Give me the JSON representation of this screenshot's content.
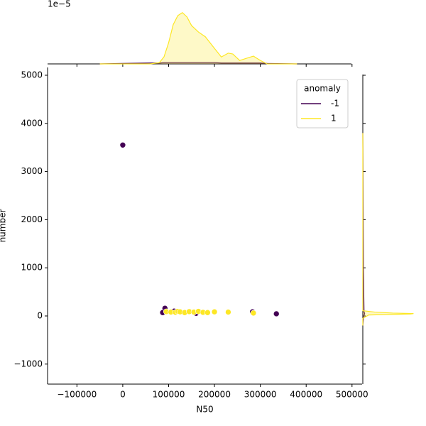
{
  "chart_data": [
    {
      "type": "scatter",
      "x_label": "N50",
      "y_label": "number",
      "xlim": [
        -164000,
        522000
      ],
      "ylim": [
        -1416,
        5162
      ],
      "xticks": [
        {
          "value": -100000,
          "label": "−100000"
        },
        0,
        100000,
        200000,
        300000,
        400000,
        500000
      ],
      "yticks": [
        {
          "value": -1000,
          "label": "−1000"
        },
        0,
        1000,
        2000,
        3000,
        4000,
        5000
      ],
      "legend_title": "anomaly",
      "legend_loc": "upper right",
      "series": [
        {
          "name": "-1",
          "color": "#440154",
          "x": [
            0,
            92000,
            87000,
            335000,
            112000,
            160000,
            283000
          ],
          "y": [
            3550,
            160,
            70,
            45,
            100,
            55,
            85
          ]
        },
        {
          "name": "1",
          "color": "#fde725",
          "x": [
            95000,
            105000,
            115000,
            120000,
            125000,
            135000,
            145000,
            155000,
            165000,
            175000,
            185000,
            200000,
            230000,
            285000
          ],
          "y": [
            90,
            80,
            75,
            95,
            85,
            70,
            90,
            80,
            95,
            75,
            70,
            85,
            80,
            60
          ]
        }
      ]
    },
    {
      "type": "kde",
      "offset_label": "1e−5",
      "ylim": [
        0,
        1.4
      ],
      "x": [
        -50000,
        0,
        60000,
        80000,
        90000,
        100000,
        110000,
        120000,
        130000,
        140000,
        150000,
        165000,
        180000,
        200000,
        215000,
        230000,
        240000,
        255000,
        270000,
        285000,
        300000,
        315000,
        380000
      ],
      "series": [
        {
          "name": "-1",
          "color": "#440154",
          "values": [
            0,
            0.01,
            0.02,
            0.02,
            0.03,
            0.03,
            0.03,
            0.03,
            0.03,
            0.03,
            0.03,
            0.03,
            0.03,
            0.03,
            0.02,
            0.02,
            0.02,
            0.02,
            0.02,
            0.02,
            0.02,
            0.01,
            0
          ]
        },
        {
          "name": "1",
          "color": "#fde725",
          "values": [
            0,
            0,
            0,
            0.03,
            0.165,
            0.49,
            0.91,
            1.12,
            1.19,
            1.09,
            0.89,
            0.74,
            0.63,
            0.36,
            0.16,
            0.25,
            0.23,
            0.08,
            0.13,
            0.18,
            0.08,
            0,
            0
          ]
        }
      ]
    },
    {
      "type": "kde-horizontal",
      "xlim": [
        0,
        0.1
      ],
      "y": [
        -200,
        -50,
        20,
        40,
        50,
        60,
        80,
        110,
        1000,
        3800
      ],
      "series": [
        {
          "name": "-1",
          "color": "#440154",
          "values": [
            0,
            0.001,
            0.002,
            0.003,
            0.003,
            0.003,
            0.002,
            0.002,
            0.001,
            0
          ]
        },
        {
          "name": "1",
          "color": "#fde725",
          "values": [
            0,
            0,
            0.01,
            0.08,
            0.085,
            0.05,
            0.02,
            0,
            0,
            0
          ]
        }
      ]
    }
  ]
}
